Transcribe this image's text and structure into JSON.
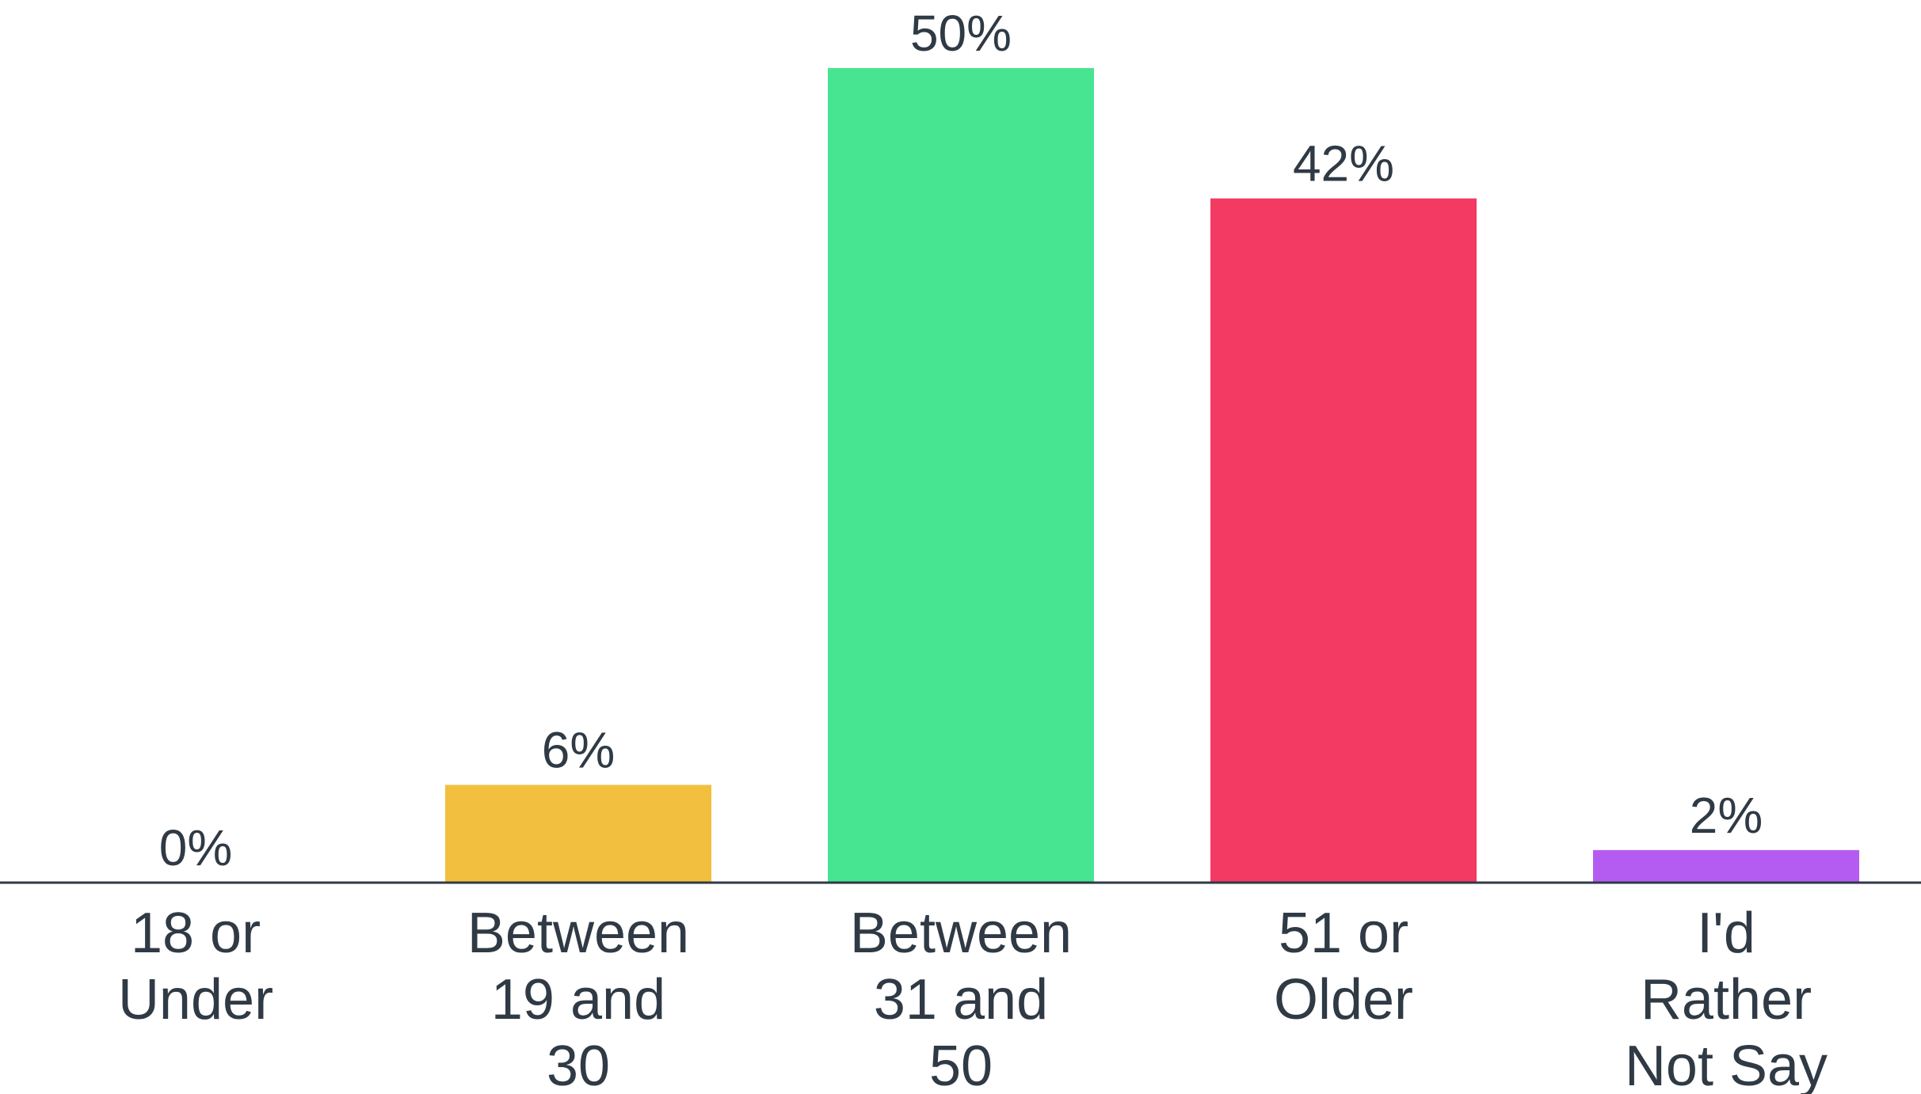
{
  "chart_data": {
    "type": "bar",
    "categories": [
      [
        "18 or",
        "Under"
      ],
      [
        "Between",
        "19 and",
        "30"
      ],
      [
        "Between",
        "31 and",
        "50"
      ],
      [
        "51 or",
        "Older"
      ],
      [
        "I'd",
        "Rather",
        "Not Say"
      ]
    ],
    "values": [
      0,
      6,
      50,
      42,
      2
    ],
    "value_labels": [
      "0%",
      "6%",
      "50%",
      "42%",
      "2%"
    ],
    "colors": [
      "#f2bf3f",
      "#f2bf3f",
      "#47e592",
      "#f23a62",
      "#b45cf2"
    ],
    "ylim": [
      0,
      50
    ],
    "grid": false,
    "title": "",
    "xlabel": "",
    "ylabel": ""
  }
}
